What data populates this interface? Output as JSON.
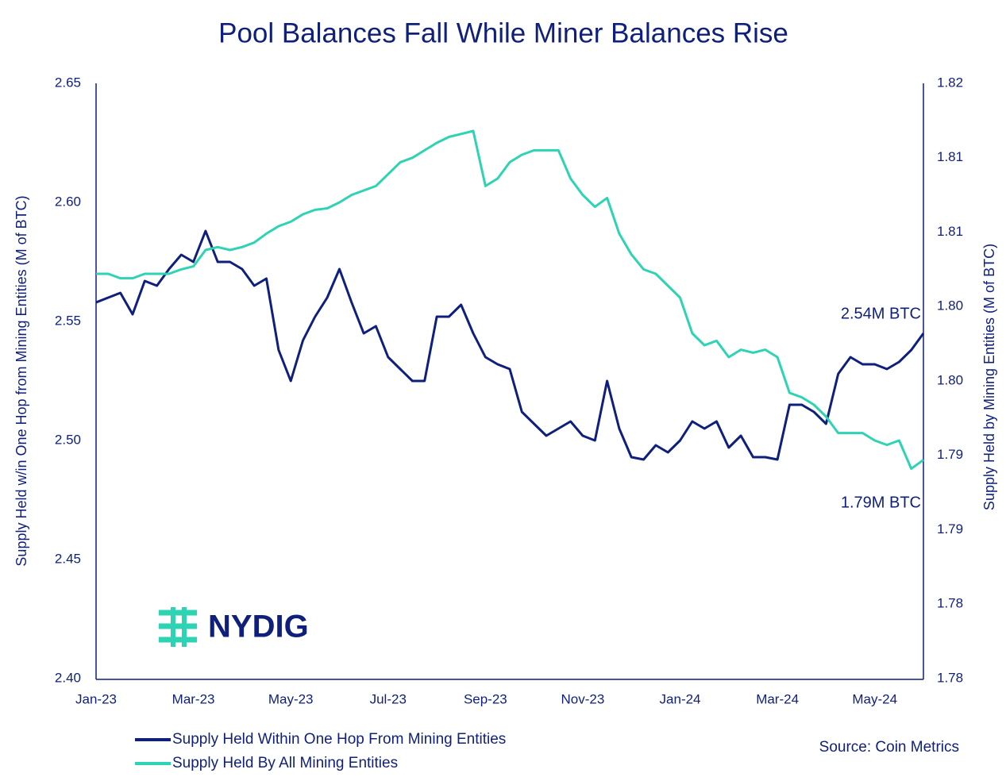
{
  "chart_data": {
    "type": "line",
    "title": "Pool Balances Fall While Miner Balances Rise",
    "ylabel": "Supply Held w/in One Hop from Mining Entities (M of BTC)",
    "y2label": "Supply Held by Mining  Entities (M of BTC)",
    "categories": [
      "Jan-23",
      null,
      null,
      null,
      null,
      null,
      null,
      null,
      "Mar-23",
      null,
      null,
      null,
      null,
      null,
      null,
      null,
      "May-23",
      null,
      null,
      null,
      null,
      null,
      null,
      null,
      "Jul-23",
      null,
      null,
      null,
      null,
      null,
      null,
      null,
      "Sep-23",
      null,
      null,
      null,
      null,
      null,
      null,
      null,
      "Nov-23",
      null,
      null,
      null,
      null,
      null,
      null,
      null,
      "Jan-24",
      null,
      null,
      null,
      null,
      null,
      null,
      null,
      "Mar-24",
      null,
      null,
      null,
      null,
      null,
      null,
      null,
      "May-24",
      null,
      null,
      null,
      null
    ],
    "series": [
      {
        "name": "Supply Held Within One Hop From Mining Entities",
        "color": "#0f1f7c",
        "axis": "y",
        "values": [
          2.558,
          2.56,
          2.562,
          2.553,
          2.567,
          2.565,
          2.572,
          2.578,
          2.575,
          2.588,
          2.575,
          2.575,
          2.572,
          2.565,
          2.568,
          2.538,
          2.525,
          2.542,
          2.552,
          2.56,
          2.572,
          2.558,
          2.545,
          2.548,
          2.535,
          2.53,
          2.525,
          2.525,
          2.552,
          2.552,
          2.557,
          2.545,
          2.535,
          2.532,
          2.53,
          2.512,
          2.507,
          2.502,
          2.505,
          2.508,
          2.502,
          2.5,
          2.525,
          2.505,
          2.493,
          2.492,
          2.498,
          2.495,
          2.5,
          2.508,
          2.505,
          2.508,
          2.497,
          2.502,
          2.493,
          2.493,
          2.492,
          2.515,
          2.515,
          2.512,
          2.507,
          2.528,
          2.535,
          2.532,
          2.532,
          2.53,
          2.533,
          2.538,
          2.545
        ]
      },
      {
        "name": "Supply Held By All Mining Entities",
        "color": "#2ed3b3",
        "axis": "y2",
        "values": [
          1.8072,
          1.8072,
          1.8069,
          1.8069,
          1.8072,
          1.8072,
          1.8072,
          1.8075,
          1.8077,
          1.8088,
          1.809,
          1.8088,
          1.809,
          1.8093,
          1.8099,
          1.8104,
          1.8107,
          1.8112,
          1.8115,
          1.8116,
          1.812,
          1.8125,
          1.8128,
          1.8131,
          1.8139,
          1.8147,
          1.815,
          1.8155,
          1.816,
          1.8164,
          1.8166,
          1.8168,
          1.8131,
          1.8136,
          1.8147,
          1.8152,
          1.8155,
          1.8155,
          1.8155,
          1.8136,
          1.8125,
          1.8117,
          1.8123,
          1.8099,
          1.8085,
          1.8075,
          1.8072,
          1.8064,
          1.8056,
          1.8032,
          1.8024,
          1.8027,
          1.8016,
          1.8021,
          1.8019,
          1.8021,
          1.8016,
          1.7992,
          1.7989,
          1.7984,
          1.7976,
          1.7965,
          1.7965,
          1.7965,
          1.796,
          1.7957,
          1.796,
          1.7941,
          1.7947
        ]
      }
    ],
    "ylim": [
      2.4,
      2.65
    ],
    "yticks": [
      {
        "value": 2.4,
        "label": "2.40"
      },
      2.45,
      {
        "value": 2.5,
        "label": "2.50"
      },
      2.55,
      {
        "value": 2.6,
        "label": "2.60"
      },
      2.65
    ],
    "y2lim": [
      1.78,
      1.82
    ],
    "y2ticks": [
      {
        "value": 1.78,
        "label": "1.78"
      },
      {
        "value": 1.785,
        "label": "1.78"
      },
      {
        "value": 1.79,
        "label": "1.79"
      },
      {
        "value": 1.795,
        "label": "1.79"
      },
      {
        "value": 1.8,
        "label": "1.80"
      },
      {
        "value": 1.805,
        "label": "1.80"
      },
      {
        "value": 1.81,
        "label": "1.81"
      },
      {
        "value": 1.815,
        "label": "1.81"
      },
      {
        "value": 1.82,
        "label": "1.82"
      }
    ],
    "annotations": [
      "2.54M BTC",
      "1.79M BTC"
    ],
    "source": "Source: Coin Metrics",
    "logo": "NYDIG",
    "legend": "bottom-left"
  }
}
